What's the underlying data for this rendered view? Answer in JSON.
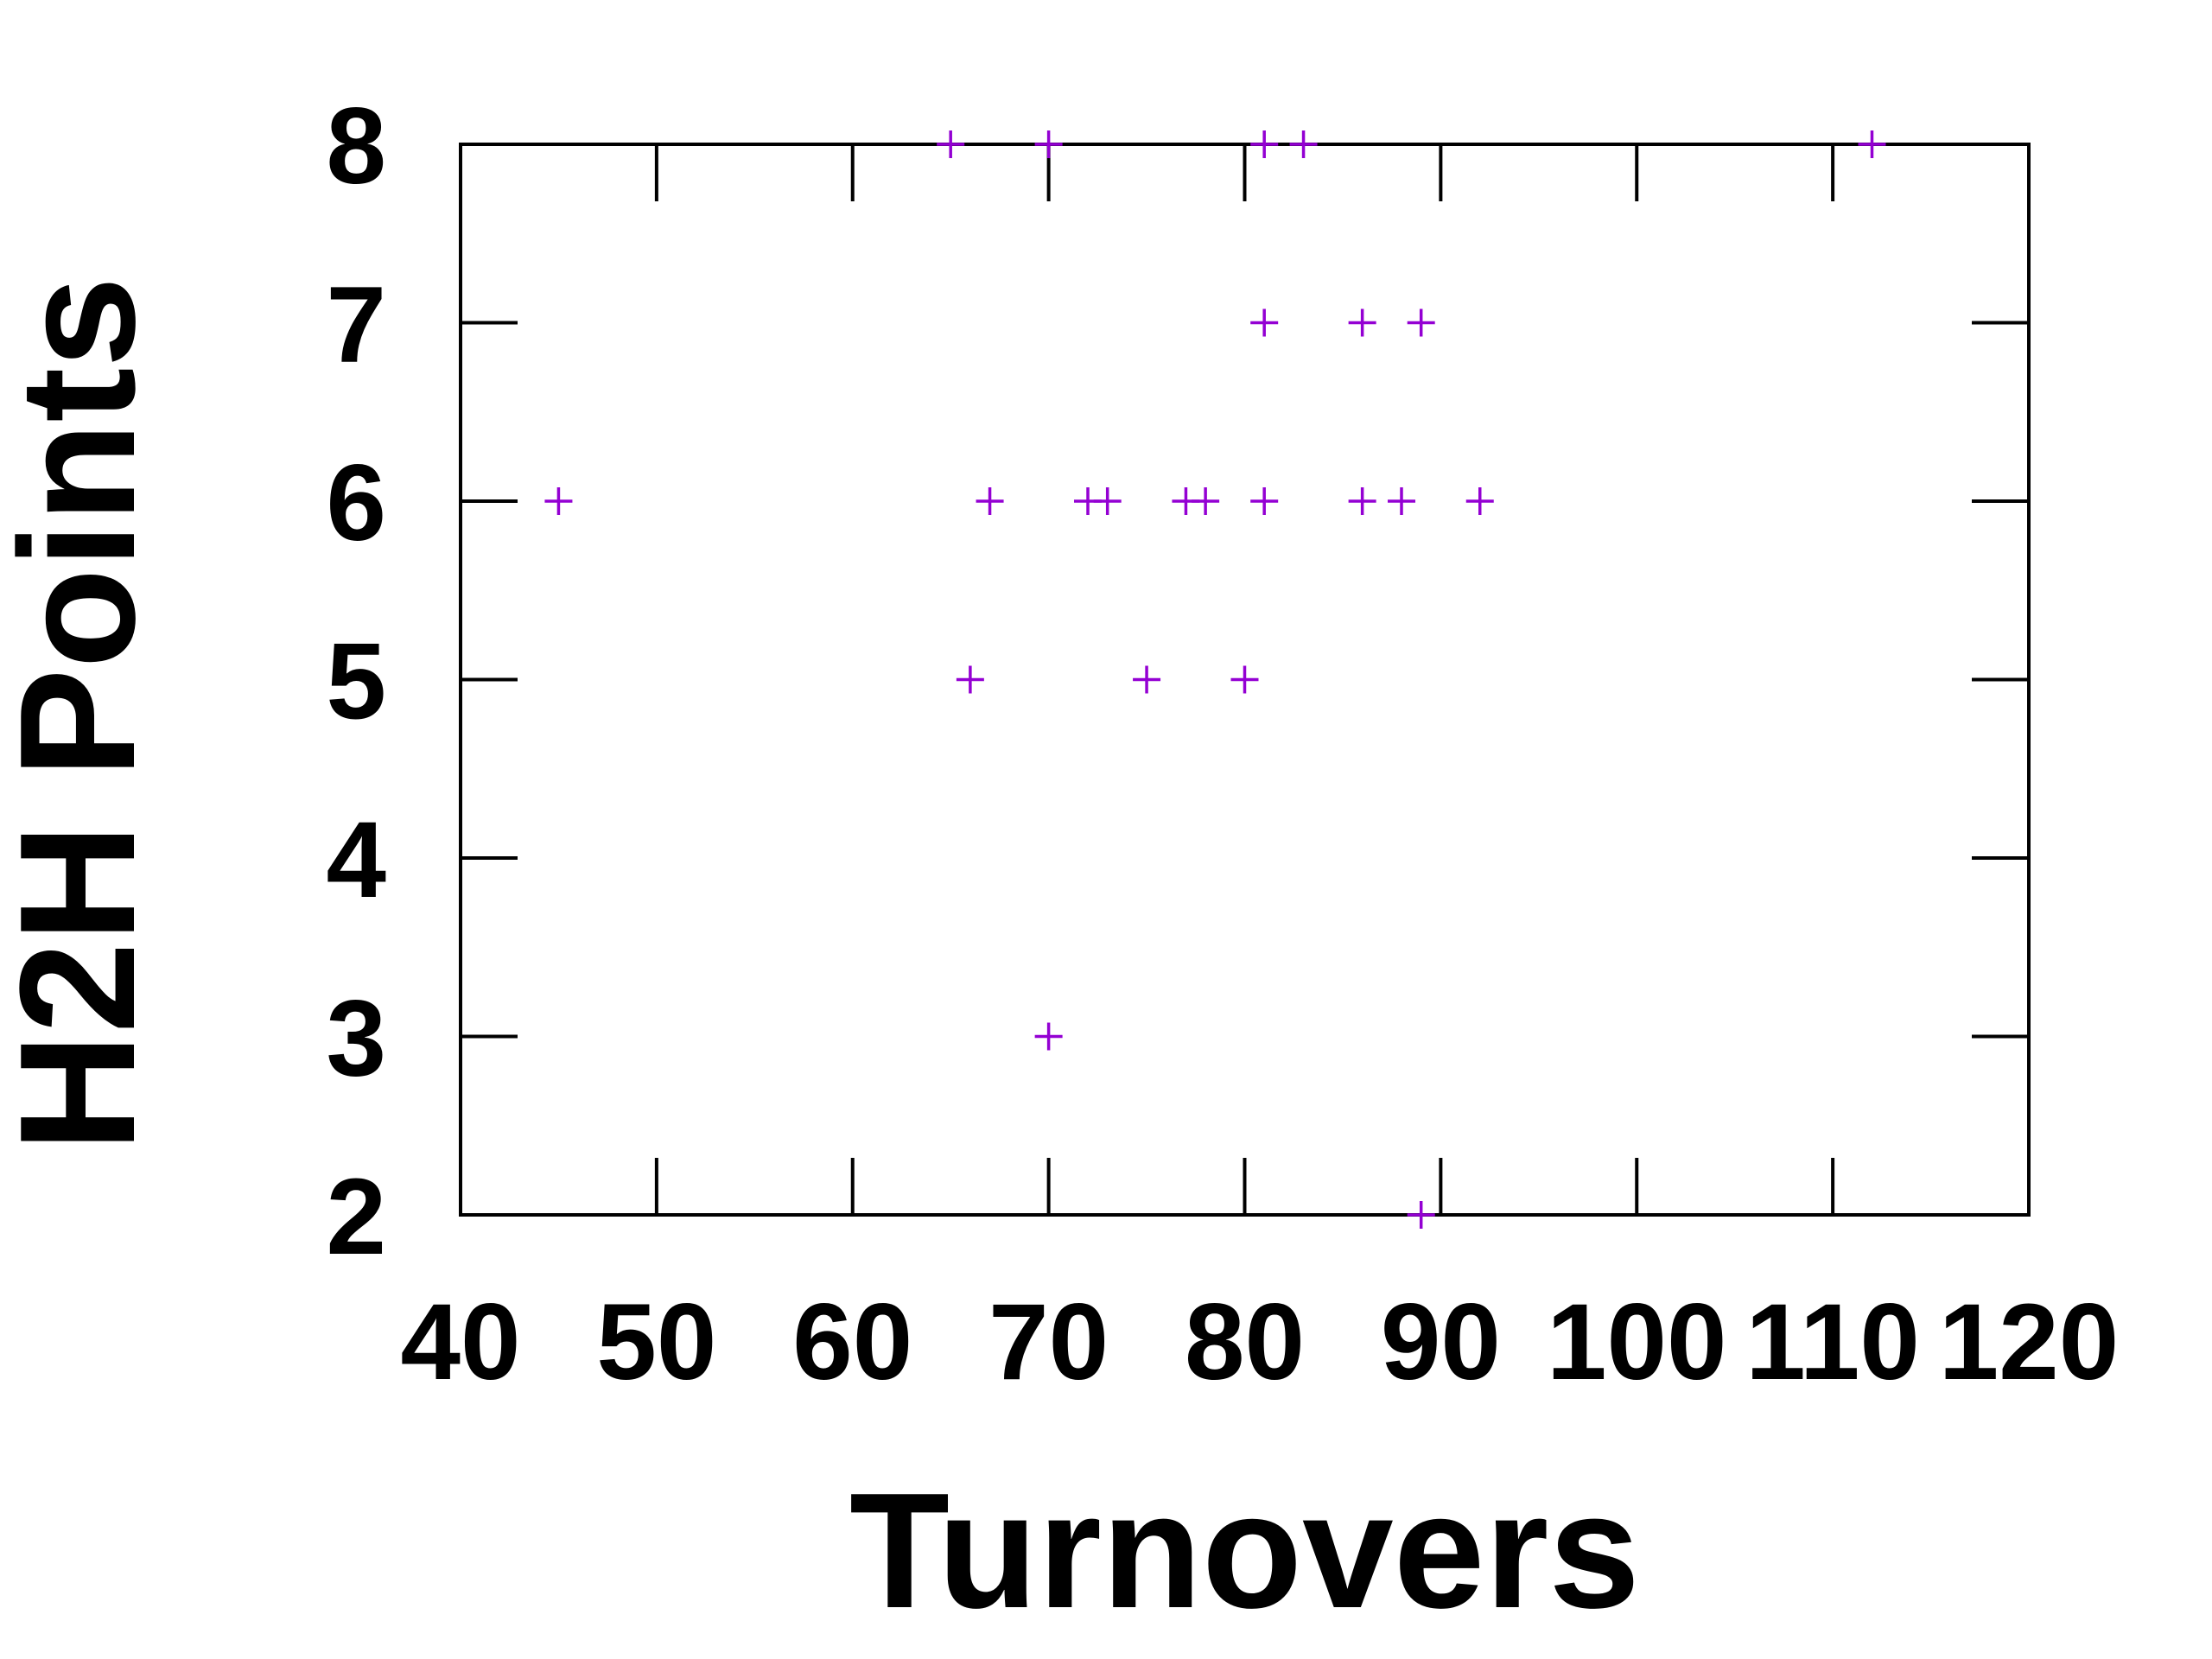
{
  "chart_data": {
    "type": "scatter",
    "title": "",
    "xlabel": "Turnovers",
    "ylabel": "H2H Points",
    "xlim": [
      40,
      120
    ],
    "ylim": [
      2,
      8
    ],
    "x_ticks": [
      "40",
      "50",
      "60",
      "70",
      "80",
      "90",
      "100",
      "110",
      "120"
    ],
    "y_ticks": [
      "2",
      "3",
      "4",
      "5",
      "6",
      "7",
      "8"
    ],
    "grid": false,
    "legend": "none",
    "marker": "+",
    "color": "#9400d3",
    "points": [
      {
        "x": 45,
        "y": 6
      },
      {
        "x": 65,
        "y": 8
      },
      {
        "x": 66,
        "y": 5
      },
      {
        "x": 67,
        "y": 6
      },
      {
        "x": 70,
        "y": 8
      },
      {
        "x": 70,
        "y": 3
      },
      {
        "x": 72,
        "y": 6
      },
      {
        "x": 73,
        "y": 6
      },
      {
        "x": 75,
        "y": 5
      },
      {
        "x": 77,
        "y": 6
      },
      {
        "x": 78,
        "y": 6
      },
      {
        "x": 80,
        "y": 5
      },
      {
        "x": 81,
        "y": 8
      },
      {
        "x": 81,
        "y": 7
      },
      {
        "x": 81,
        "y": 6
      },
      {
        "x": 83,
        "y": 8
      },
      {
        "x": 86,
        "y": 7
      },
      {
        "x": 86,
        "y": 6
      },
      {
        "x": 88,
        "y": 6
      },
      {
        "x": 89,
        "y": 7
      },
      {
        "x": 89,
        "y": 2
      },
      {
        "x": 92,
        "y": 6
      },
      {
        "x": 112,
        "y": 8
      }
    ]
  }
}
